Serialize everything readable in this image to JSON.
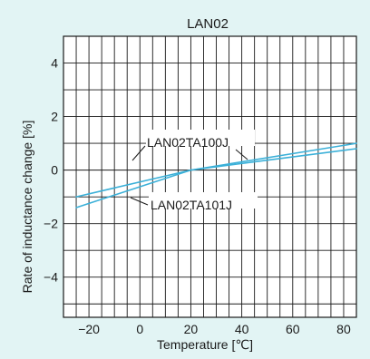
{
  "chart_data": {
    "type": "line",
    "title": "LAN02",
    "xlabel": "Temperature  [℃]",
    "ylabel": "Rate of inductance change  [%]",
    "xlim": [
      -30,
      85
    ],
    "ylim": [
      -5.5,
      5
    ],
    "x_grid": [
      -30,
      -25,
      -20,
      -15,
      -10,
      -5,
      0,
      5,
      10,
      15,
      20,
      25,
      30,
      35,
      40,
      45,
      50,
      55,
      60,
      65,
      70,
      75,
      80,
      85
    ],
    "y_grid": [
      -5,
      -4,
      -3,
      -2,
      -1,
      0,
      1,
      2,
      3,
      4,
      5
    ],
    "xticks": [
      {
        "value": -20,
        "label": "−20"
      },
      {
        "value": 0,
        "label": "0"
      },
      {
        "value": 20,
        "label": "20"
      },
      {
        "value": 40,
        "label": "40"
      },
      {
        "value": 60,
        "label": "60"
      },
      {
        "value": 80,
        "label": "80"
      }
    ],
    "yticks": [
      {
        "value": 4,
        "label": "4"
      },
      {
        "value": 2,
        "label": "2"
      },
      {
        "value": 0,
        "label": "0"
      },
      {
        "value": -2,
        "label": "−2"
      },
      {
        "value": -4,
        "label": "−4"
      }
    ],
    "grid": true,
    "series": [
      {
        "name": "LAN02TA100J",
        "x": [
          -25,
          20,
          85
        ],
        "y": [
          -1.0,
          0.0,
          0.8
        ]
      },
      {
        "name": "LAN02TA101J",
        "x": [
          -25,
          20,
          85
        ],
        "y": [
          -1.4,
          0.0,
          1.0
        ]
      }
    ],
    "annotations": [
      {
        "text": "LAN02TA100J",
        "series": 0
      },
      {
        "text": "LAN02TA101J",
        "series": 1
      }
    ],
    "line_color": "#3bb0d8",
    "grid_color": "#1a1a1a",
    "plot_background": "#ffffff"
  }
}
